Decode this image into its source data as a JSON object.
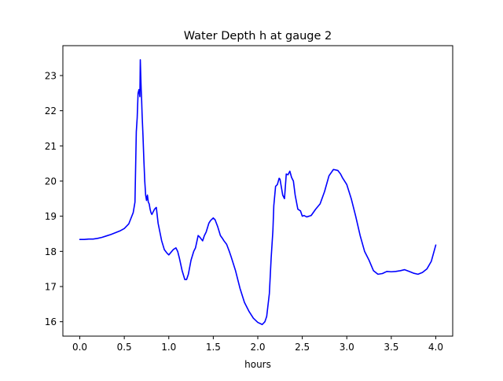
{
  "chart_data": {
    "type": "line",
    "title": "Water Depth h at gauge 2",
    "xlabel": "hours",
    "ylabel": "",
    "xlim": [
      -0.19,
      4.19
    ],
    "ylim": [
      15.59,
      23.85
    ],
    "xticks": [
      0.0,
      0.5,
      1.0,
      1.5,
      2.0,
      2.5,
      3.0,
      3.5,
      4.0
    ],
    "xtick_labels": [
      "0.0",
      "0.5",
      "1.0",
      "1.5",
      "2.0",
      "2.5",
      "3.0",
      "3.5",
      "4.0"
    ],
    "yticks": [
      16,
      17,
      18,
      19,
      20,
      21,
      22,
      23
    ],
    "ytick_labels": [
      "16",
      "17",
      "18",
      "19",
      "20",
      "21",
      "22",
      "23"
    ],
    "grid": false,
    "legend": "none",
    "series": [
      {
        "color": "#0000ff",
        "x": [
          0.0,
          0.05,
          0.1,
          0.15,
          0.2,
          0.25,
          0.3,
          0.35,
          0.4,
          0.45,
          0.5,
          0.55,
          0.6,
          0.62,
          0.635,
          0.645,
          0.655,
          0.665,
          0.675,
          0.68,
          0.685,
          0.69,
          0.695,
          0.7,
          0.71,
          0.72,
          0.73,
          0.74,
          0.75,
          0.76,
          0.77,
          0.78,
          0.79,
          0.8,
          0.81,
          0.82,
          0.84,
          0.86,
          0.88,
          0.9,
          0.92,
          0.95,
          0.98,
          1.0,
          1.05,
          1.08,
          1.1,
          1.12,
          1.15,
          1.18,
          1.2,
          1.22,
          1.25,
          1.28,
          1.3,
          1.33,
          1.35,
          1.38,
          1.4,
          1.42,
          1.45,
          1.47,
          1.5,
          1.52,
          1.55,
          1.58,
          1.6,
          1.62,
          1.65,
          1.68,
          1.7,
          1.75,
          1.8,
          1.85,
          1.9,
          1.95,
          2.0,
          2.05,
          2.08,
          2.1,
          2.13,
          2.15,
          2.17,
          2.18,
          2.2,
          2.22,
          2.24,
          2.25,
          2.26,
          2.27,
          2.28,
          2.29,
          2.3,
          2.32,
          2.34,
          2.36,
          2.38,
          2.4,
          2.42,
          2.45,
          2.48,
          2.5,
          2.52,
          2.55,
          2.6,
          2.65,
          2.7,
          2.75,
          2.8,
          2.85,
          2.9,
          2.93,
          2.95,
          3.0,
          3.05,
          3.1,
          3.15,
          3.2,
          3.25,
          3.3,
          3.35,
          3.4,
          3.45,
          3.5,
          3.55,
          3.6,
          3.65,
          3.7,
          3.75,
          3.8,
          3.85,
          3.9,
          3.95,
          4.0
        ],
        "y": [
          18.34,
          18.34,
          18.35,
          18.35,
          18.37,
          18.4,
          18.44,
          18.48,
          18.53,
          18.58,
          18.65,
          18.78,
          19.1,
          19.4,
          21.4,
          21.8,
          22.5,
          22.6,
          22.4,
          23.45,
          23.0,
          22.6,
          22.3,
          21.9,
          21.3,
          20.6,
          20.0,
          19.6,
          19.45,
          19.6,
          19.4,
          19.35,
          19.2,
          19.1,
          19.05,
          19.1,
          19.2,
          19.25,
          18.8,
          18.55,
          18.3,
          18.05,
          17.95,
          17.9,
          18.05,
          18.1,
          18.0,
          17.8,
          17.45,
          17.2,
          17.2,
          17.35,
          17.75,
          18.0,
          18.1,
          18.45,
          18.4,
          18.3,
          18.45,
          18.55,
          18.8,
          18.88,
          18.95,
          18.9,
          18.7,
          18.45,
          18.38,
          18.3,
          18.2,
          18.0,
          17.85,
          17.45,
          16.95,
          16.55,
          16.3,
          16.1,
          15.98,
          15.92,
          16.0,
          16.15,
          16.8,
          17.8,
          18.6,
          19.3,
          19.85,
          19.9,
          20.08,
          20.05,
          19.9,
          19.75,
          19.6,
          19.55,
          19.5,
          20.2,
          20.18,
          20.28,
          20.1,
          20.0,
          19.6,
          19.2,
          19.15,
          19.0,
          19.02,
          18.98,
          19.02,
          19.2,
          19.35,
          19.7,
          20.15,
          20.33,
          20.3,
          20.2,
          20.1,
          19.9,
          19.5,
          19.0,
          18.45,
          18.0,
          17.75,
          17.45,
          17.35,
          17.37,
          17.43,
          17.42,
          17.43,
          17.45,
          17.48,
          17.43,
          17.38,
          17.35,
          17.4,
          17.5,
          17.72,
          18.18
        ]
      }
    ]
  }
}
